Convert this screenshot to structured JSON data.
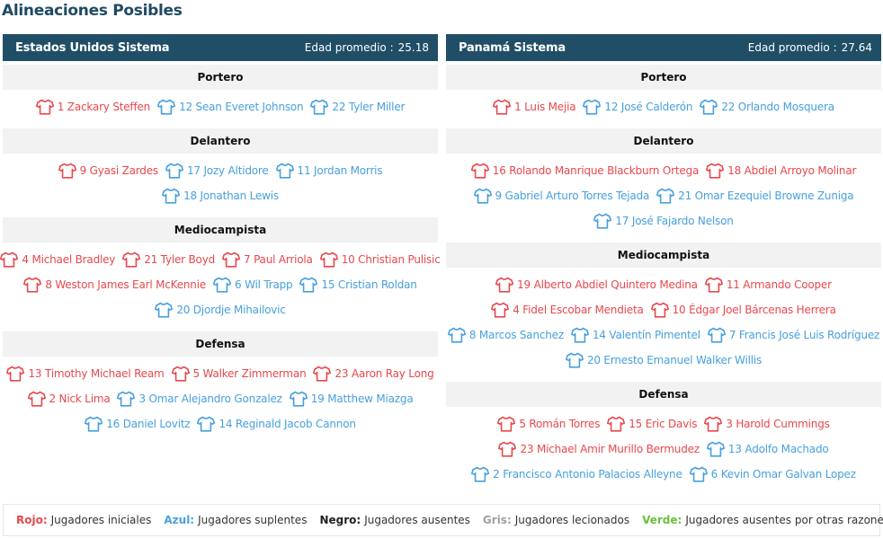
{
  "page": {
    "title": "Alineaciones Posibles"
  },
  "colors": {
    "header_bg": "#214e67",
    "starter": "#e8484d",
    "sub": "#47a0dd"
  },
  "teams": [
    {
      "name": "Estados Unidos Sistema",
      "age_label": "Edad promedio :",
      "age_value": "25.18",
      "groups": [
        {
          "title": "Portero",
          "rows": [
            [
              {
                "label": "1 Zackary Steffen",
                "status": "starter"
              },
              {
                "label": "12 Sean Everet Johnson",
                "status": "sub"
              },
              {
                "label": "22 Tyler Miller",
                "status": "sub"
              }
            ]
          ]
        },
        {
          "title": "Delantero",
          "rows": [
            [
              {
                "label": "9 Gyasi Zardes",
                "status": "starter"
              },
              {
                "label": "17 Jozy Altidore",
                "status": "sub"
              },
              {
                "label": "11 Jordan Morris",
                "status": "sub"
              }
            ],
            [
              {
                "label": "18 Jonathan Lewis",
                "status": "sub"
              }
            ]
          ]
        },
        {
          "title": "Mediocampista",
          "rows": [
            [
              {
                "label": "4 Michael Bradley",
                "status": "starter"
              },
              {
                "label": "21 Tyler Boyd",
                "status": "starter"
              },
              {
                "label": "7 Paul Arriola",
                "status": "starter"
              },
              {
                "label": "10 Christian Pulisic",
                "status": "starter"
              }
            ],
            [
              {
                "label": "8 Weston James Earl McKennie",
                "status": "starter"
              },
              {
                "label": "6 Wil Trapp",
                "status": "sub"
              },
              {
                "label": "15 Cristian Roldan",
                "status": "sub"
              }
            ],
            [
              {
                "label": "20 Djordje Mihailovic",
                "status": "sub"
              }
            ]
          ]
        },
        {
          "title": "Defensa",
          "rows": [
            [
              {
                "label": "13 Timothy Michael Ream",
                "status": "starter"
              },
              {
                "label": "5 Walker Zimmerman",
                "status": "starter"
              },
              {
                "label": "23 Aaron Ray Long",
                "status": "starter"
              }
            ],
            [
              {
                "label": "2 Nick Lima",
                "status": "starter"
              },
              {
                "label": "3 Omar Alejandro Gonzalez",
                "status": "sub"
              },
              {
                "label": "19 Matthew Miazga",
                "status": "sub"
              }
            ],
            [
              {
                "label": "16 Daniel Lovitz",
                "status": "sub"
              },
              {
                "label": "14 Reginald Jacob Cannon",
                "status": "sub"
              }
            ]
          ]
        }
      ]
    },
    {
      "name": "Panamá Sistema",
      "age_label": "Edad promedio :",
      "age_value": "27.64",
      "groups": [
        {
          "title": "Portero",
          "rows": [
            [
              {
                "label": "1 Luis Mejia",
                "status": "starter"
              },
              {
                "label": "12 José Calderón",
                "status": "sub"
              },
              {
                "label": "22 Orlando Mosquera",
                "status": "sub"
              }
            ]
          ]
        },
        {
          "title": "Delantero",
          "rows": [
            [
              {
                "label": "16 Rolando Manrique Blackburn Ortega",
                "status": "starter"
              },
              {
                "label": "18 Abdiel Arroyo Molinar",
                "status": "starter"
              }
            ],
            [
              {
                "label": "9 Gabriel Arturo Torres Tejada",
                "status": "sub"
              },
              {
                "label": "21 Omar Ezequiel Browne Zuniga",
                "status": "sub"
              }
            ],
            [
              {
                "label": "17 José Fajardo Nelson",
                "status": "sub"
              }
            ]
          ]
        },
        {
          "title": "Mediocampista",
          "rows": [
            [
              {
                "label": "19 Alberto Abdiel Quintero Medina",
                "status": "starter"
              },
              {
                "label": "11 Armando Cooper",
                "status": "starter"
              }
            ],
            [
              {
                "label": "4 Fidel Escobar Mendieta",
                "status": "starter"
              },
              {
                "label": "10 Édgar Joel Bárcenas Herrera",
                "status": "starter"
              }
            ],
            [
              {
                "label": "8 Marcos Sanchez",
                "status": "sub"
              },
              {
                "label": "14 Valentín Pimentel",
                "status": "sub"
              },
              {
                "label": "7 Francis José Luis Rodríguez",
                "status": "sub"
              }
            ],
            [
              {
                "label": "20 Ernesto Emanuel Walker Willis",
                "status": "sub"
              }
            ]
          ]
        },
        {
          "title": "Defensa",
          "rows": [
            [
              {
                "label": "5 Román Torres",
                "status": "starter"
              },
              {
                "label": "15 Eric Davis",
                "status": "starter"
              },
              {
                "label": "3 Harold Cummings",
                "status": "starter"
              }
            ],
            [
              {
                "label": "23 Michael Amir Murillo Bermudez",
                "status": "starter"
              },
              {
                "label": "13 Adolfo Machado",
                "status": "sub"
              }
            ],
            [
              {
                "label": "2 Francisco Antonio Palacios Alleyne",
                "status": "sub"
              },
              {
                "label": "6 Kevin Omar Galvan Lopez",
                "status": "sub"
              }
            ]
          ]
        }
      ]
    }
  ],
  "legend": [
    {
      "key": "Rojo:",
      "text": "Jugadores iniciales",
      "color": "#e8484d"
    },
    {
      "key": "Azul:",
      "text": "Jugadores suplentes",
      "color": "#47a0dd"
    },
    {
      "key": "Negro:",
      "text": "Jugadores ausentes",
      "color": "#222222"
    },
    {
      "key": "Gris:",
      "text": "Jugadores lecionados",
      "color": "#a0a0a0"
    },
    {
      "key": "Verde:",
      "text": "Jugadores ausentes por otras razones",
      "color": "#6bbf3b"
    }
  ]
}
